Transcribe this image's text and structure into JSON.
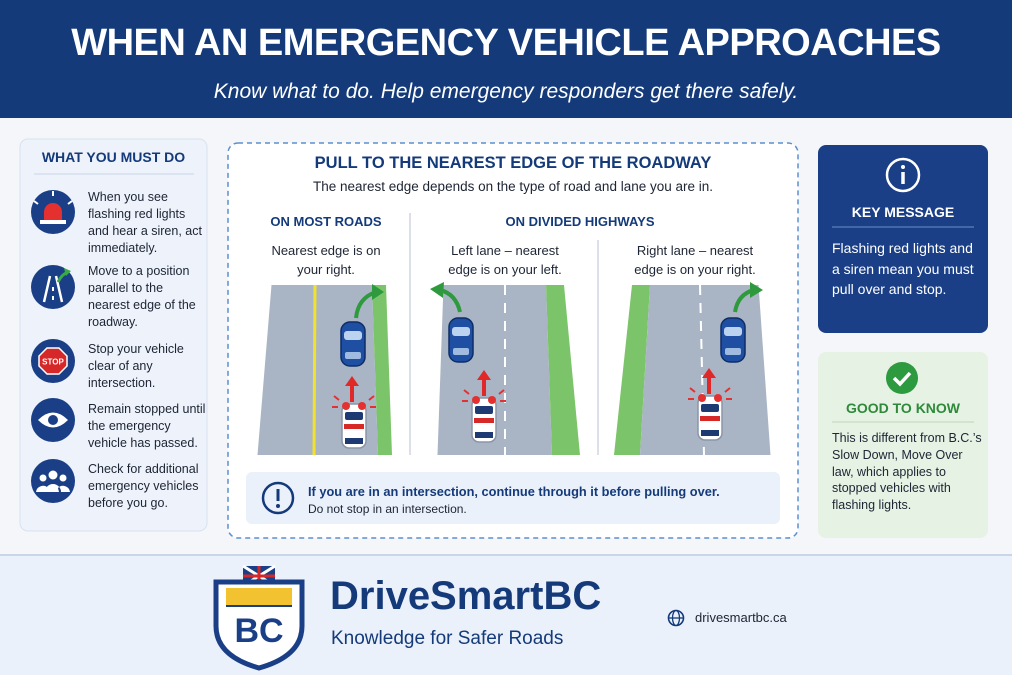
{
  "header": {
    "title": "WHEN AN EMERGENCY VEHICLE APPROACHES",
    "subtitle": "Know what to do. Help emergency responders get there safely."
  },
  "must_do": {
    "heading": "WHAT YOU MUST DO",
    "items": [
      "When you see flashing red lights and hear a siren, act immediately.",
      "Move to a position parallel to the nearest edge of the roadway.",
      "Stop your vehicle clear of any intersection.",
      "Remain stopped until the emergency vehicle has passed.",
      "Check for additional emergency vehicles before you go."
    ],
    "stop_icon": "STOP"
  },
  "center": {
    "heading": "PULL TO THE NEAREST EDGE OF THE ROADWAY",
    "subheading": "The nearest edge depends on the type of road and lane you are in.",
    "sections": [
      {
        "title": "ON MOST ROADS",
        "panels": [
          "Nearest edge is on your right."
        ]
      },
      {
        "title": "ON DIVIDED HIGHWAYS",
        "panels": [
          "Left lane – nearest edge is on your left.",
          "Right lane – nearest edge is on your right."
        ]
      }
    ],
    "note": {
      "title": "If you are in an intersection, continue through it before pulling over.",
      "text": "Do not stop in an intersection."
    }
  },
  "key_message": {
    "heading": "KEY MESSAGE",
    "text": "Flashing red lights and a siren mean you must pull over and stop."
  },
  "good_to_know": {
    "heading": "GOOD TO KNOW",
    "text": "This is different from B.C.’s Slow Down, Move Over law, which applies to stopped vehicles with flashing lights."
  },
  "footer": {
    "logo_text": "BC",
    "brand": "DriveSmartBC",
    "tagline": "Knowledge for Safer Roads",
    "url": "drivesmartbc.ca"
  }
}
